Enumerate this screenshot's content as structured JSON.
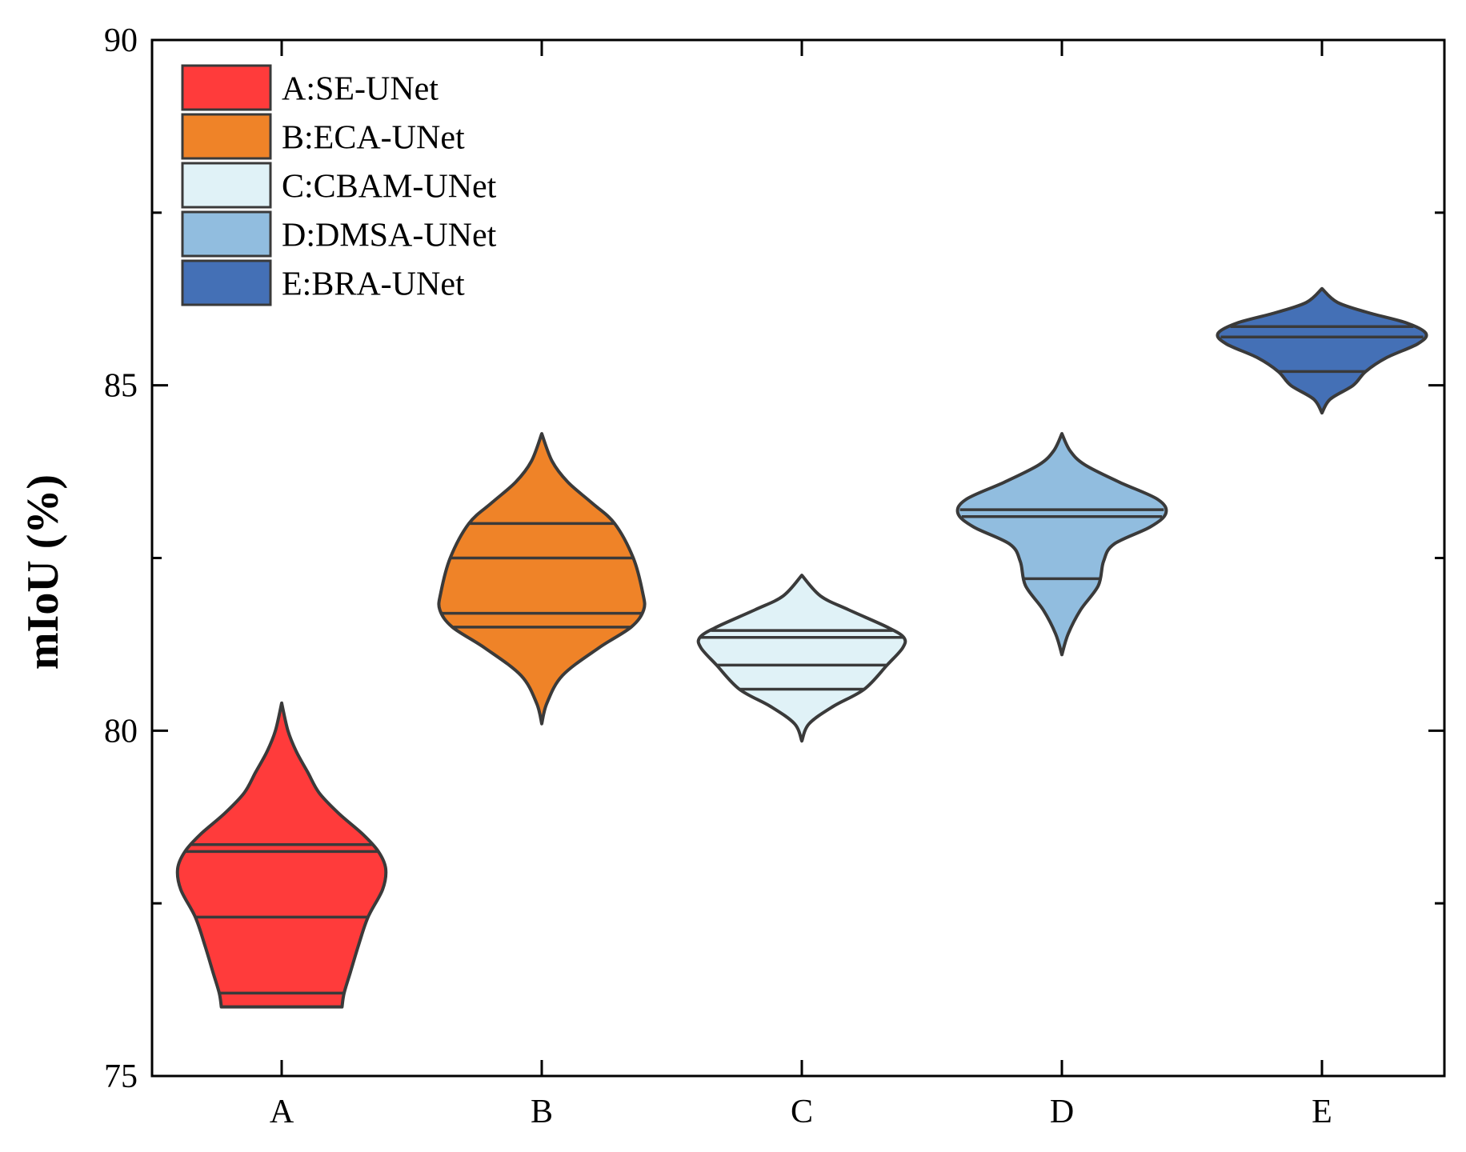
{
  "chart_data": {
    "type": "violin",
    "title": "",
    "xlabel": "",
    "ylabel": "mIoU (%)",
    "ylim": [
      75,
      90
    ],
    "yticks": [
      75,
      80,
      85,
      90
    ],
    "ytick_labels": [
      "75",
      "80",
      "85",
      "90"
    ],
    "minor_yticks": [
      77.5,
      82.5,
      87.5
    ],
    "categories": [
      "A",
      "B",
      "C",
      "D",
      "E"
    ],
    "legend_position": "top-left",
    "series": [
      {
        "category": "A",
        "name": "A:SE-UNet",
        "color": "#FF3B3B",
        "min": 76.0,
        "max": 80.4,
        "quartile_lines": [
          76.2,
          77.3,
          78.25,
          78.35
        ],
        "profile": [
          [
            76.0,
            0.58
          ],
          [
            76.2,
            0.6
          ],
          [
            76.5,
            0.66
          ],
          [
            76.9,
            0.74
          ],
          [
            77.3,
            0.83
          ],
          [
            77.7,
            0.97
          ],
          [
            78.0,
            1.0
          ],
          [
            78.25,
            0.93
          ],
          [
            78.5,
            0.78
          ],
          [
            78.8,
            0.55
          ],
          [
            79.1,
            0.36
          ],
          [
            79.4,
            0.25
          ],
          [
            79.7,
            0.14
          ],
          [
            80.0,
            0.06
          ],
          [
            80.4,
            0.0
          ]
        ]
      },
      {
        "category": "B",
        "name": "B:ECA-UNet",
        "color": "#EF8328",
        "min": 80.1,
        "max": 84.3,
        "quartile_lines": [
          81.5,
          81.7,
          82.5,
          83.0
        ],
        "profile": [
          [
            80.1,
            0.0
          ],
          [
            80.4,
            0.05
          ],
          [
            80.8,
            0.2
          ],
          [
            81.2,
            0.55
          ],
          [
            81.5,
            0.86
          ],
          [
            81.75,
            0.98
          ],
          [
            82.0,
            0.97
          ],
          [
            82.5,
            0.88
          ],
          [
            83.0,
            0.7
          ],
          [
            83.3,
            0.48
          ],
          [
            83.6,
            0.25
          ],
          [
            83.9,
            0.1
          ],
          [
            84.3,
            0.0
          ]
        ]
      },
      {
        "category": "C",
        "name": "C:CBAM-UNet",
        "color": "#E0F2F7",
        "min": 79.85,
        "max": 82.25,
        "quartile_lines": [
          80.6,
          80.95,
          81.35,
          81.45
        ],
        "profile": [
          [
            79.85,
            0.0
          ],
          [
            80.1,
            0.07
          ],
          [
            80.35,
            0.3
          ],
          [
            80.6,
            0.6
          ],
          [
            80.95,
            0.82
          ],
          [
            81.2,
            0.97
          ],
          [
            81.35,
            0.98
          ],
          [
            81.5,
            0.82
          ],
          [
            81.75,
            0.45
          ],
          [
            81.95,
            0.18
          ],
          [
            82.25,
            0.0
          ]
        ]
      },
      {
        "category": "D",
        "name": "D:DMSA-UNet",
        "color": "#91BDDF",
        "min": 81.1,
        "max": 84.3,
        "quartile_lines": [
          82.2,
          83.1,
          83.2
        ],
        "profile": [
          [
            81.1,
            0.0
          ],
          [
            81.4,
            0.06
          ],
          [
            81.75,
            0.18
          ],
          [
            82.1,
            0.35
          ],
          [
            82.45,
            0.4
          ],
          [
            82.7,
            0.5
          ],
          [
            82.95,
            0.85
          ],
          [
            83.15,
            1.0
          ],
          [
            83.35,
            0.92
          ],
          [
            83.6,
            0.55
          ],
          [
            83.85,
            0.22
          ],
          [
            84.05,
            0.08
          ],
          [
            84.3,
            0.0
          ]
        ]
      },
      {
        "category": "E",
        "name": "E:BRA-UNet",
        "color": "#4470B6",
        "min": 84.6,
        "max": 86.4,
        "quartile_lines": [
          85.2,
          85.7,
          85.85
        ],
        "profile": [
          [
            84.6,
            0.0
          ],
          [
            84.8,
            0.08
          ],
          [
            85.0,
            0.3
          ],
          [
            85.2,
            0.42
          ],
          [
            85.4,
            0.62
          ],
          [
            85.6,
            0.92
          ],
          [
            85.75,
            1.0
          ],
          [
            85.9,
            0.82
          ],
          [
            86.05,
            0.45
          ],
          [
            86.2,
            0.15
          ],
          [
            86.4,
            0.0
          ]
        ]
      }
    ]
  }
}
